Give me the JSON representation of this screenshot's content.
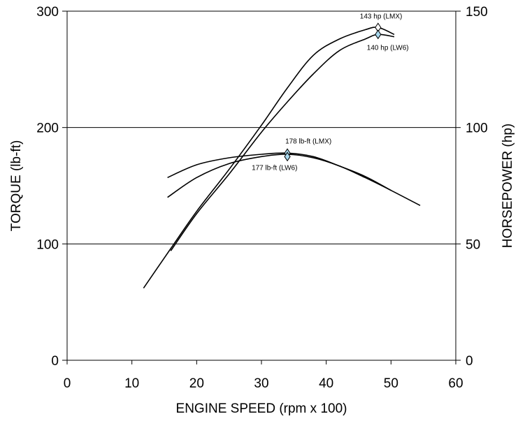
{
  "chart_data": {
    "type": "line",
    "xlabel": "ENGINE SPEED (rpm x 100)",
    "ylabel_left": "TORQUE (lb-ft)",
    "ylabel_right": "HORSEPOWER (hp)",
    "xlim": [
      0,
      60
    ],
    "ylim_left": [
      0,
      300
    ],
    "ylim_right": [
      0,
      150
    ],
    "x_ticks": [
      "0",
      "10",
      "20",
      "30",
      "40",
      "50",
      "60"
    ],
    "y_left_ticks": [
      "0",
      "100",
      "200",
      "300"
    ],
    "y_right_ticks": [
      "0",
      "50",
      "100",
      "150"
    ],
    "gridlines_y": [
      100,
      200,
      300
    ],
    "series": [
      {
        "name": "LMX",
        "quantity": "torque",
        "axis": "left",
        "x": [
          15.5,
          20,
          25,
          30,
          34,
          38,
          42,
          46,
          50
        ],
        "y": [
          157,
          168,
          174,
          177,
          178,
          175,
          167,
          158,
          146
        ]
      },
      {
        "name": "LW6",
        "quantity": "torque",
        "axis": "left",
        "x": [
          15.5,
          20,
          25,
          30,
          34,
          38,
          42,
          46,
          50,
          54.5
        ],
        "y": [
          140,
          157,
          169,
          175,
          177,
          174,
          167,
          157,
          146,
          133
        ]
      },
      {
        "name": "LMX",
        "quantity": "horsepower",
        "axis": "right",
        "x": [
          11.8,
          16,
          20,
          25,
          30,
          34,
          38,
          42,
          46,
          48,
          50.5
        ],
        "y": [
          31,
          48,
          64,
          82,
          101,
          117,
          131,
          138,
          142,
          143,
          140
        ]
      },
      {
        "name": "LW6",
        "quantity": "horsepower",
        "axis": "right",
        "x": [
          16,
          20,
          25,
          30,
          34,
          38,
          42,
          46,
          48,
          50.5
        ],
        "y": [
          47,
          63,
          80,
          98,
          111,
          123,
          133,
          138,
          140,
          139
        ]
      }
    ],
    "annotations": [
      {
        "text": "143 hp (LMX)",
        "x": 48,
        "y": 143,
        "axis": "right",
        "color": "#ffffff"
      },
      {
        "text": "140 hp (LW6)",
        "x": 48,
        "y": 140,
        "axis": "right",
        "color": "#a8d8ee"
      },
      {
        "text": "178 lb-ft (LMX)",
        "x": 34,
        "y": 178,
        "axis": "left",
        "color": "#a8d8ee"
      },
      {
        "text": "177 lb-ft (LW6)",
        "x": 34,
        "y": 175,
        "axis": "left",
        "color": "#a8d8ee"
      }
    ]
  }
}
